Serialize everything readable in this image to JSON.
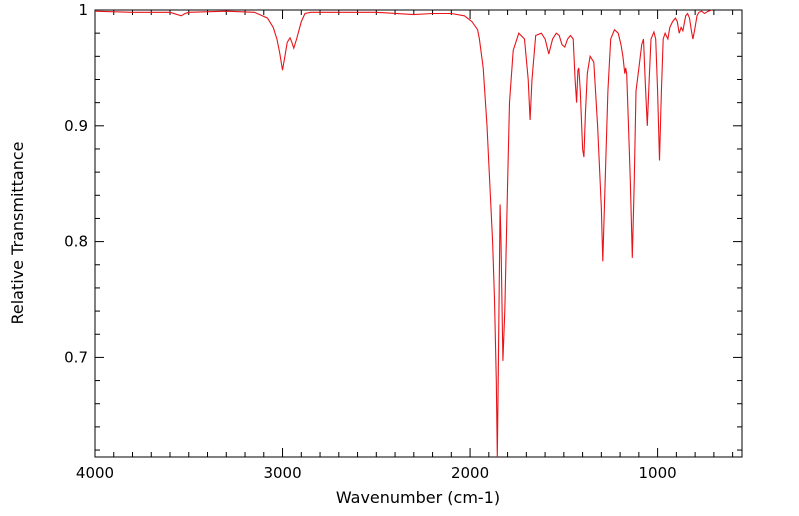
{
  "chart_data": {
    "type": "line",
    "title": "",
    "xlabel": "Wavenumber (cm-1)",
    "ylabel": "Relative Transmittance",
    "xlim": [
      4000,
      550
    ],
    "ylim": [
      0.614,
      1.0
    ],
    "x_reversed": true,
    "grid": false,
    "legend": "none",
    "x_ticks": [
      4000,
      3000,
      2000,
      1000
    ],
    "x_tick_labels": [
      "4000",
      "3000",
      "2000",
      "1000"
    ],
    "y_ticks": [
      0.7,
      0.8,
      0.9,
      1.0
    ],
    "y_tick_labels": [
      "0.7",
      "0.8",
      "0.9",
      "1"
    ],
    "colors": {
      "line": "#e8141a",
      "axes": "#000000"
    },
    "series": [
      {
        "color": "#e8141a",
        "points": [
          [
            4000,
            0.999
          ],
          [
            3800,
            0.998
          ],
          [
            3600,
            0.998
          ],
          [
            3540,
            0.995
          ],
          [
            3520,
            0.997
          ],
          [
            3500,
            0.998
          ],
          [
            3300,
            0.999
          ],
          [
            3150,
            0.998
          ],
          [
            3080,
            0.993
          ],
          [
            3050,
            0.985
          ],
          [
            3030,
            0.975
          ],
          [
            3015,
            0.963
          ],
          [
            3000,
            0.948
          ],
          [
            2985,
            0.962
          ],
          [
            2975,
            0.972
          ],
          [
            2960,
            0.976
          ],
          [
            2950,
            0.972
          ],
          [
            2940,
            0.967
          ],
          [
            2925,
            0.975
          ],
          [
            2900,
            0.99
          ],
          [
            2880,
            0.997
          ],
          [
            2850,
            0.998
          ],
          [
            2500,
            0.998
          ],
          [
            2300,
            0.996
          ],
          [
            2200,
            0.997
          ],
          [
            2100,
            0.997
          ],
          [
            2030,
            0.995
          ],
          [
            1990,
            0.99
          ],
          [
            1960,
            0.983
          ],
          [
            1950,
            0.975
          ],
          [
            1930,
            0.95
          ],
          [
            1910,
            0.9
          ],
          [
            1895,
            0.85
          ],
          [
            1880,
            0.8
          ],
          [
            1870,
            0.75
          ],
          [
            1860,
            0.68
          ],
          [
            1855,
            0.614
          ],
          [
            1850,
            0.68
          ],
          [
            1840,
            0.832
          ],
          [
            1835,
            0.8
          ],
          [
            1825,
            0.697
          ],
          [
            1815,
            0.74
          ],
          [
            1800,
            0.85
          ],
          [
            1790,
            0.92
          ],
          [
            1770,
            0.965
          ],
          [
            1740,
            0.98
          ],
          [
            1710,
            0.975
          ],
          [
            1690,
            0.94
          ],
          [
            1680,
            0.905
          ],
          [
            1670,
            0.94
          ],
          [
            1650,
            0.978
          ],
          [
            1620,
            0.98
          ],
          [
            1600,
            0.975
          ],
          [
            1580,
            0.962
          ],
          [
            1560,
            0.975
          ],
          [
            1540,
            0.98
          ],
          [
            1525,
            0.978
          ],
          [
            1510,
            0.97
          ],
          [
            1495,
            0.968
          ],
          [
            1480,
            0.975
          ],
          [
            1465,
            0.978
          ],
          [
            1450,
            0.975
          ],
          [
            1440,
            0.94
          ],
          [
            1432,
            0.92
          ],
          [
            1425,
            0.948
          ],
          [
            1420,
            0.95
          ],
          [
            1412,
            0.93
          ],
          [
            1400,
            0.88
          ],
          [
            1393,
            0.873
          ],
          [
            1385,
            0.91
          ],
          [
            1375,
            0.945
          ],
          [
            1360,
            0.96
          ],
          [
            1340,
            0.955
          ],
          [
            1320,
            0.9
          ],
          [
            1300,
            0.83
          ],
          [
            1292,
            0.783
          ],
          [
            1280,
            0.85
          ],
          [
            1265,
            0.93
          ],
          [
            1250,
            0.975
          ],
          [
            1230,
            0.983
          ],
          [
            1210,
            0.98
          ],
          [
            1195,
            0.97
          ],
          [
            1185,
            0.96
          ],
          [
            1175,
            0.945
          ],
          [
            1170,
            0.95
          ],
          [
            1165,
            0.945
          ],
          [
            1155,
            0.9
          ],
          [
            1145,
            0.85
          ],
          [
            1135,
            0.786
          ],
          [
            1125,
            0.85
          ],
          [
            1115,
            0.93
          ],
          [
            1100,
            0.95
          ],
          [
            1085,
            0.97
          ],
          [
            1075,
            0.975
          ],
          [
            1065,
            0.935
          ],
          [
            1055,
            0.9
          ],
          [
            1045,
            0.94
          ],
          [
            1035,
            0.975
          ],
          [
            1020,
            0.981
          ],
          [
            1010,
            0.975
          ],
          [
            1000,
            0.93
          ],
          [
            990,
            0.87
          ],
          [
            980,
            0.93
          ],
          [
            970,
            0.975
          ],
          [
            960,
            0.98
          ],
          [
            945,
            0.975
          ],
          [
            935,
            0.985
          ],
          [
            920,
            0.99
          ],
          [
            905,
            0.993
          ],
          [
            895,
            0.99
          ],
          [
            885,
            0.98
          ],
          [
            875,
            0.985
          ],
          [
            865,
            0.982
          ],
          [
            850,
            0.995
          ],
          [
            840,
            0.997
          ],
          [
            830,
            0.993
          ],
          [
            820,
            0.982
          ],
          [
            812,
            0.975
          ],
          [
            800,
            0.985
          ],
          [
            790,
            0.995
          ],
          [
            780,
            0.998
          ],
          [
            765,
            0.999
          ],
          [
            750,
            0.997
          ],
          [
            730,
            0.999
          ],
          [
            710,
            1.0
          ]
        ]
      }
    ]
  }
}
